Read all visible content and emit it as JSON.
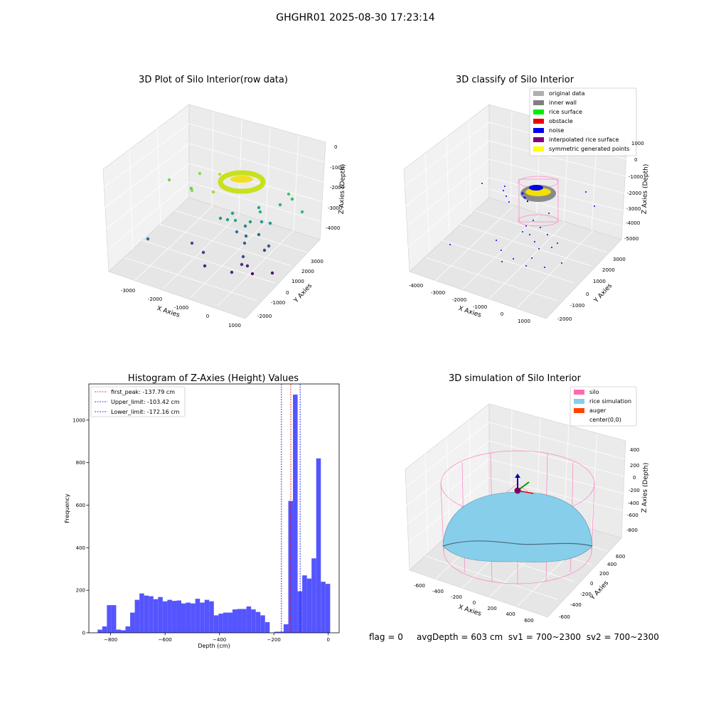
{
  "figure": {
    "suptitle": "GHGHR01 2025-08-30 17:23:14",
    "footer": {
      "flag": "flag = 0",
      "avg_depth": "avgDepth = 603 cm",
      "sv1": "sv1 = 700~2300",
      "sv2": "sv2 = 700~2300"
    }
  },
  "chart_data": [
    {
      "type": "scatter",
      "projection": "3d",
      "title": "3D Plot of Silo Interior(row data)",
      "xlabel": "X Axies",
      "ylabel": "Y Axies",
      "zlabel": "Z Axies (Depth)",
      "x_ticks": [
        "-3000",
        "-2000",
        "-1000",
        "0",
        "1000"
      ],
      "y_ticks": [
        "-2000",
        "-1000",
        "0",
        "1000",
        "2000",
        "3000"
      ],
      "z_ticks": [
        "0",
        "-1000",
        "-2000",
        "-3000",
        "-4000"
      ],
      "colormap": "viridis"
    },
    {
      "type": "scatter",
      "projection": "3d",
      "title": "3D classify of Silo Interior",
      "xlabel": "X Axies",
      "ylabel": "Y Axies",
      "zlabel": "Z Axies (Depth)",
      "x_ticks": [
        "-4000",
        "-3000",
        "-2000",
        "-1000",
        "0",
        "1000"
      ],
      "y_ticks": [
        "-2000",
        "-1000",
        "0",
        "1000",
        "2000",
        "3000"
      ],
      "z_ticks": [
        "1000",
        "0",
        "-1000",
        "-2000",
        "-3000",
        "-4000",
        "-5000"
      ],
      "legend_position": "top-right",
      "legend": [
        {
          "label": "original data",
          "color": "#b0b0b0"
        },
        {
          "label": "inner wall",
          "color": "#808080"
        },
        {
          "label": "rice surface",
          "color": "#00ee00"
        },
        {
          "label": "obstacle",
          "color": "#ee0000"
        },
        {
          "label": "noise",
          "color": "#0000ee"
        },
        {
          "label": "interpolated rice surface",
          "color": "#800080"
        },
        {
          "label": "symmetric generated points",
          "color": "#ffff00"
        }
      ]
    },
    {
      "type": "bar",
      "title": "Histogram of Z-Axies (Height) Values",
      "xlabel": "Depth (cm)",
      "ylabel": "Frequency",
      "x_ticks": [
        "−800",
        "−600",
        "−400",
        "−200",
        "0"
      ],
      "y_ticks": [
        "0",
        "200",
        "400",
        "600",
        "800",
        "1000"
      ],
      "xlim": [
        -880,
        40
      ],
      "ylim": [
        0,
        1170
      ],
      "bar_color": "#4c4cff",
      "bins_start": -848,
      "bin_width": 17.1,
      "values": [
        15,
        30,
        130,
        130,
        15,
        12,
        30,
        95,
        155,
        185,
        175,
        172,
        158,
        168,
        148,
        155,
        150,
        152,
        138,
        142,
        138,
        160,
        142,
        155,
        148,
        82,
        90,
        95,
        95,
        110,
        112,
        112,
        124,
        110,
        98,
        82,
        50,
        0,
        5,
        5,
        40,
        620,
        1120,
        195,
        270,
        255,
        350,
        820,
        240,
        230
      ],
      "vlines": [
        {
          "label": "first_peak: -137.79 cm",
          "x": -137.79,
          "color": "#ee0000"
        },
        {
          "label": "Upper_limit: -103.42 cm",
          "x": -103.42,
          "color": "#0000ee"
        },
        {
          "label": "Lower_limit: -172.16 cm",
          "x": -172.16,
          "color": "#0000ee"
        }
      ],
      "legend_position": "top-left"
    },
    {
      "type": "surface",
      "projection": "3d",
      "title": "3D simulation of Silo Interior",
      "xlabel": "X Axies",
      "ylabel": "Y Axies",
      "zlabel": "Z Axies (Depth)",
      "x_ticks": [
        "-600",
        "-400",
        "-200",
        "0",
        "200",
        "400",
        "600"
      ],
      "y_ticks": [
        "-600",
        "-400",
        "-200",
        "0",
        "200",
        "400",
        "600"
      ],
      "z_ticks": [
        "400",
        "200",
        "0",
        "-200",
        "-400",
        "-600",
        "-800"
      ],
      "legend_position": "top-right",
      "legend": [
        {
          "label": "silo",
          "color": "#ff69b4"
        },
        {
          "label": "rice simulation",
          "color": "#87ceeb"
        },
        {
          "label": "auger",
          "color": "#ff4500"
        },
        {
          "label": "center(0,0)",
          "color": "#ffffff"
        }
      ]
    }
  ]
}
